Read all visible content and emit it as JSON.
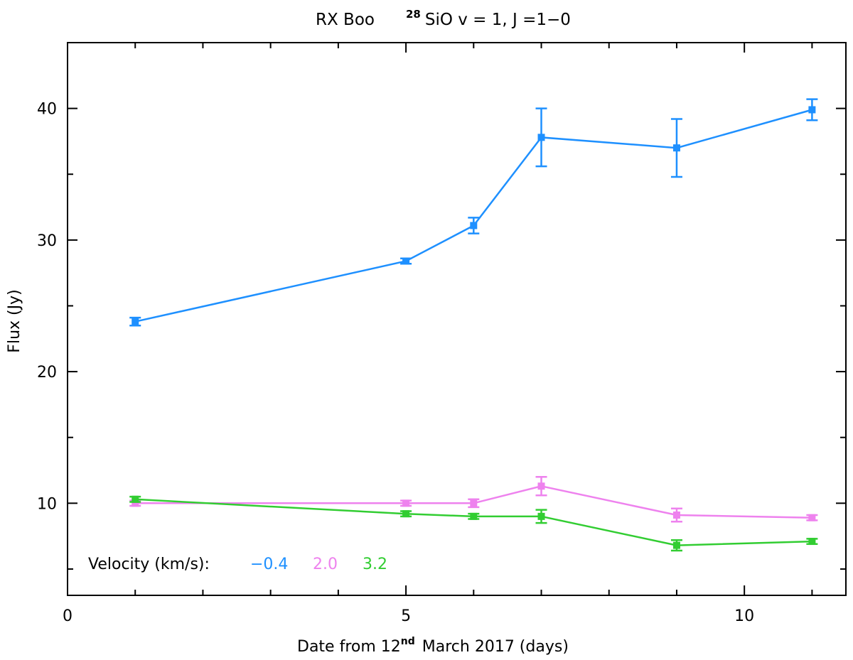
{
  "chart_data": {
    "type": "line",
    "title": {
      "object": "RX Boo",
      "isotope_sup": "28",
      "line": "SiO v = 1, J =1−0"
    },
    "xlabel": {
      "prefix": "Date from 12",
      "sup": "nd",
      "suffix": "March 2017 (days)"
    },
    "ylabel": "Flux (Jy)",
    "xlim": [
      0,
      11.5
    ],
    "ylim": [
      3,
      45
    ],
    "x_ticks": [
      0,
      5,
      10
    ],
    "x_minor_ticks": [
      1,
      2,
      3,
      4,
      6,
      7,
      8,
      9,
      11
    ],
    "y_ticks": [
      10,
      20,
      30,
      40
    ],
    "y_minor_ticks": [
      5,
      15,
      25,
      35,
      45
    ],
    "legend": {
      "label": "Velocity (km/s):",
      "position": "bottom-left"
    },
    "series": [
      {
        "name": "−0.4",
        "color": "#1e90ff",
        "x": [
          1,
          5,
          6,
          7,
          9,
          11
        ],
        "y": [
          23.8,
          28.4,
          31.1,
          37.8,
          37.0,
          39.9
        ],
        "yerr": [
          0.3,
          0.2,
          0.6,
          2.2,
          2.2,
          0.8
        ]
      },
      {
        "name": "2.0",
        "color": "#ee82ee",
        "x": [
          1,
          5,
          6,
          7,
          9,
          11
        ],
        "y": [
          10.0,
          10.0,
          10.0,
          11.3,
          9.1,
          8.9
        ],
        "yerr": [
          0.2,
          0.2,
          0.3,
          0.7,
          0.5,
          0.2
        ]
      },
      {
        "name": "3.2",
        "color": "#32cd32",
        "x": [
          1,
          5,
          6,
          7,
          9,
          11
        ],
        "y": [
          10.3,
          9.2,
          9.0,
          9.0,
          6.8,
          7.1
        ],
        "yerr": [
          0.2,
          0.2,
          0.2,
          0.5,
          0.4,
          0.2
        ]
      }
    ]
  }
}
